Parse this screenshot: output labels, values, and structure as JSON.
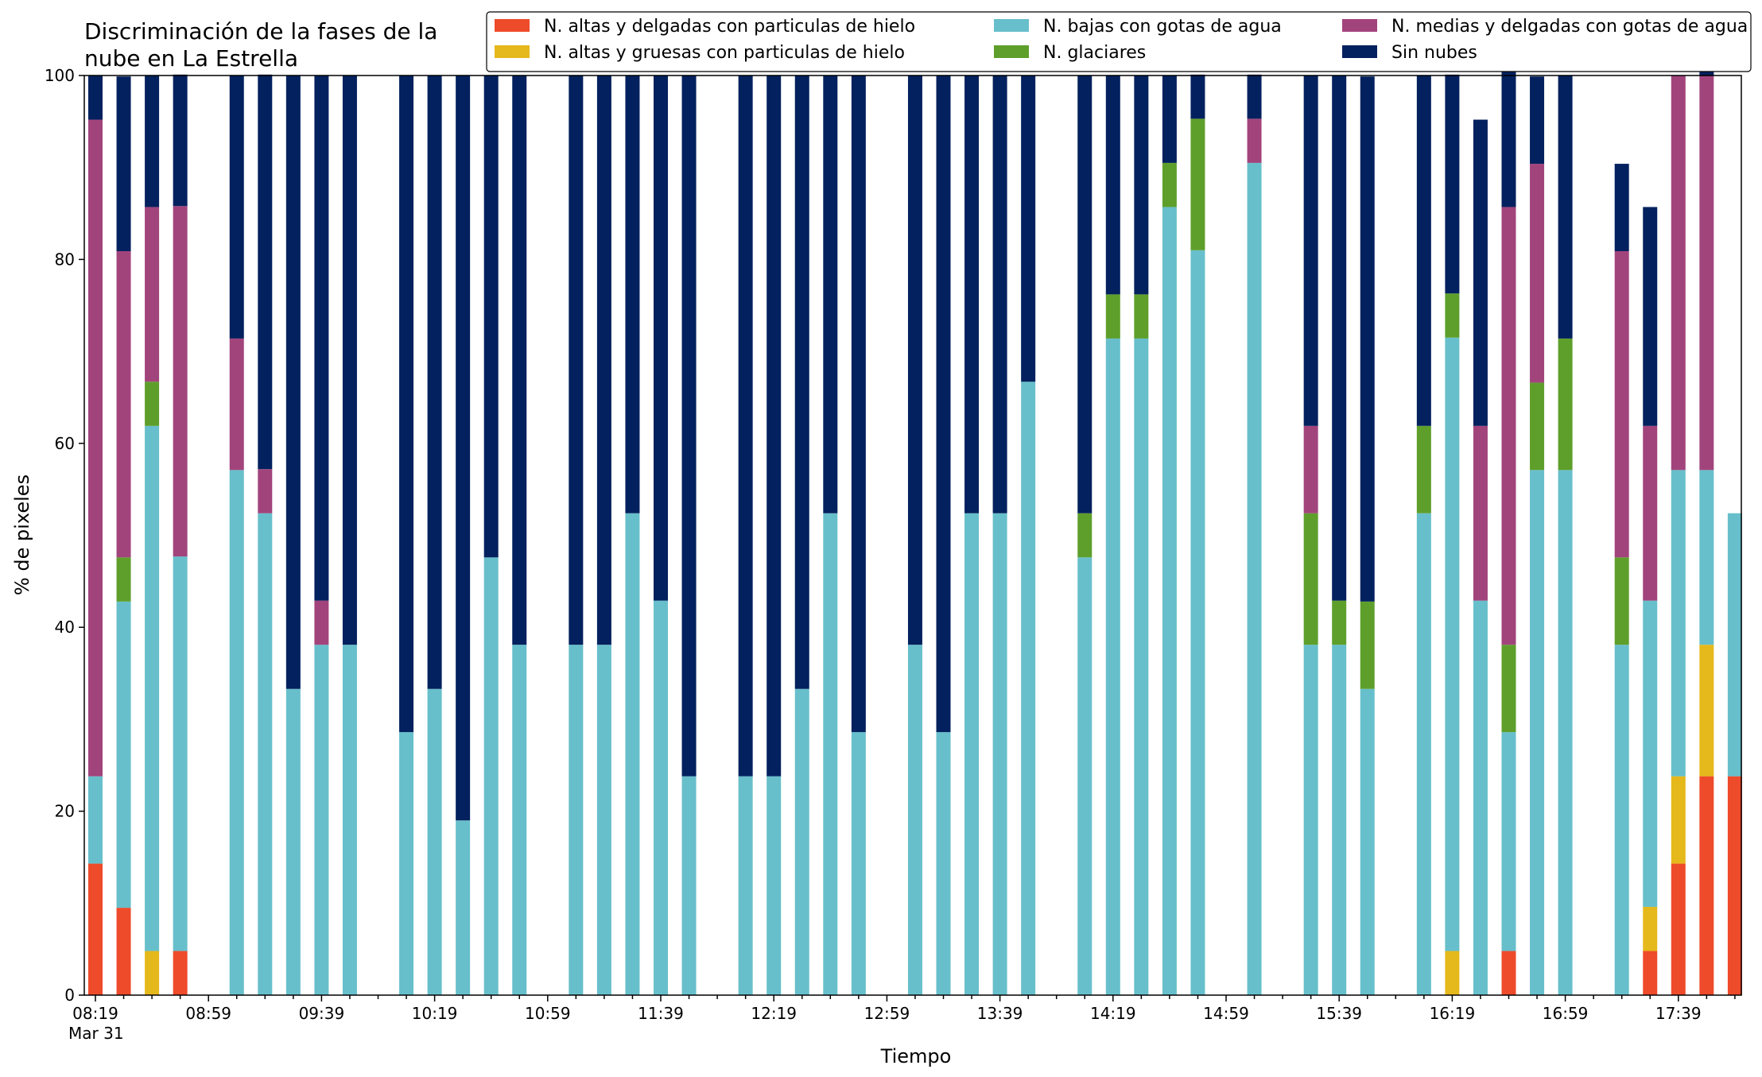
{
  "chart_data": {
    "type": "bar",
    "stacked": true,
    "title": "Discriminación de la fases de la\nnube en La Estrella",
    "xlabel": "Tiempo",
    "ylabel": "% de pixeles",
    "ylim": [
      0,
      100
    ],
    "yticks": [
      0,
      20,
      40,
      60,
      80,
      100
    ],
    "grid": false,
    "legend_position": "top-right",
    "x_start": "08:19",
    "x_step_minutes": 10,
    "x_tick_labels": [
      "08:19\nMar 31",
      "08:59",
      "09:39",
      "10:19",
      "10:59",
      "11:39",
      "12:19",
      "12:59",
      "13:39",
      "14:19",
      "14:59",
      "15:39",
      "16:19",
      "16:59",
      "17:39"
    ],
    "x_tick_label_step": 4,
    "series": [
      {
        "name": "N. altas y delgadas con particulas de hielo",
        "color": "#ee4b2b",
        "values": [
          14.3,
          9.5,
          0,
          4.8,
          null,
          0,
          0,
          0,
          0,
          0,
          null,
          0,
          0,
          0,
          0,
          0,
          null,
          0,
          0,
          0,
          0,
          0,
          null,
          0,
          0,
          0,
          0,
          0,
          null,
          0,
          0,
          0,
          0,
          0,
          null,
          0,
          0,
          0,
          0,
          0,
          null,
          0,
          null,
          0,
          0,
          0,
          null,
          0,
          0,
          0,
          4.8,
          0,
          0,
          null,
          0,
          4.8,
          14.3,
          23.8,
          23.8
        ]
      },
      {
        "name": "N. altas y gruesas con particulas de hielo",
        "color": "#e5b81b",
        "values": [
          0,
          0,
          4.8,
          0,
          null,
          0,
          0,
          0,
          0,
          0,
          null,
          0,
          0,
          0,
          0,
          0,
          null,
          0,
          0,
          0,
          0,
          0,
          null,
          0,
          0,
          0,
          0,
          0,
          null,
          0,
          0,
          0,
          0,
          0,
          null,
          0,
          0,
          0,
          0,
          0,
          null,
          0,
          null,
          0,
          0,
          0,
          null,
          0,
          4.8,
          0,
          0,
          0,
          0,
          null,
          0,
          4.8,
          9.5,
          14.3,
          0
        ]
      },
      {
        "name": "N. bajas con gotas de agua",
        "color": "#67bfcb",
        "values": [
          9.5,
          33.3,
          57.1,
          42.9,
          null,
          57.1,
          52.4,
          33.3,
          38.1,
          38.1,
          null,
          28.6,
          33.3,
          19.0,
          47.6,
          38.1,
          null,
          38.1,
          38.1,
          52.4,
          42.9,
          23.8,
          null,
          23.8,
          23.8,
          33.3,
          52.4,
          28.6,
          null,
          38.1,
          28.6,
          52.4,
          52.4,
          66.7,
          null,
          47.6,
          71.4,
          71.4,
          85.7,
          81.0,
          null,
          90.5,
          null,
          38.1,
          38.1,
          33.3,
          null,
          52.4,
          66.7,
          42.9,
          23.8,
          57.1,
          57.1,
          null,
          38.1,
          33.3,
          33.3,
          19.0,
          28.6
        ]
      },
      {
        "name": "N. glaciares",
        "color": "#5e9f2b",
        "values": [
          0,
          4.8,
          4.8,
          0,
          null,
          0,
          0,
          0,
          0,
          0,
          null,
          0,
          0,
          0,
          0,
          0,
          null,
          0,
          0,
          0,
          0,
          0,
          null,
          0,
          0,
          0,
          0,
          0,
          null,
          0,
          0,
          0,
          0,
          0,
          null,
          4.8,
          4.8,
          4.8,
          4.8,
          14.3,
          null,
          0,
          null,
          14.3,
          4.8,
          9.5,
          null,
          9.5,
          4.8,
          0,
          9.5,
          9.5,
          14.3,
          null,
          9.5,
          0,
          0,
          0,
          0
        ]
      },
      {
        "name": "N. medias y delgadas con gotas de agua",
        "color": "#a2447c",
        "values": [
          71.4,
          33.3,
          19.0,
          38.1,
          null,
          14.3,
          4.8,
          0,
          4.8,
          0,
          null,
          0,
          0,
          0,
          0,
          0,
          null,
          0,
          0,
          0,
          0,
          0,
          null,
          0,
          0,
          0,
          0,
          0,
          null,
          0,
          0,
          0,
          0,
          0,
          null,
          0,
          0,
          0,
          0,
          0,
          null,
          4.8,
          null,
          9.5,
          0,
          0,
          null,
          0,
          0,
          19.0,
          47.6,
          23.8,
          0,
          null,
          33.3,
          19.0,
          42.9,
          42.9
        ]
      },
      {
        "name": "Sin nubes",
        "color": "#03215e",
        "values": [
          4.8,
          19.0,
          14.3,
          14.3,
          null,
          28.6,
          42.9,
          66.7,
          57.1,
          61.9,
          null,
          71.4,
          66.7,
          81.0,
          52.4,
          61.9,
          null,
          61.9,
          61.9,
          47.6,
          57.1,
          76.2,
          null,
          76.2,
          76.2,
          66.7,
          47.6,
          71.4,
          null,
          61.9,
          71.4,
          47.6,
          47.6,
          33.3,
          null,
          47.6,
          23.8,
          23.8,
          9.5,
          4.8,
          null,
          4.8,
          null,
          38.1,
          57.1,
          57.1,
          null,
          38.1,
          23.8,
          33.3,
          19.0,
          9.5,
          28.6,
          null,
          9.5,
          23.8,
          0,
          4.8
        ]
      }
    ]
  }
}
